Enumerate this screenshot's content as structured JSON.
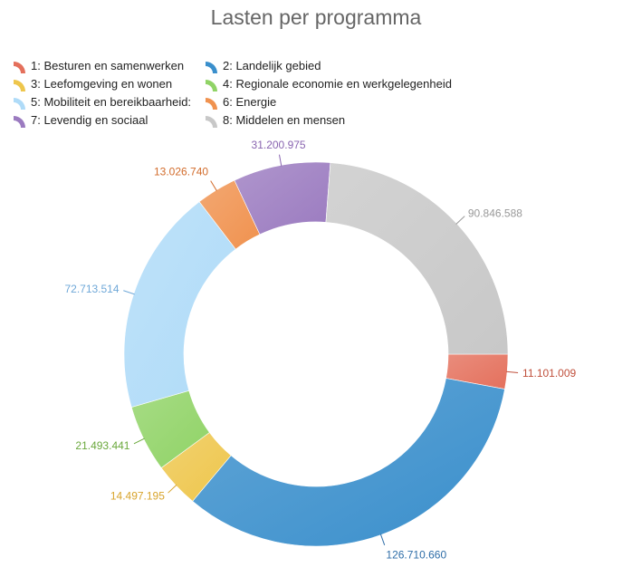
{
  "chart_data": {
    "type": "pie",
    "variant": "donut",
    "title": "Lasten per programma",
    "legend_position": "top-left",
    "start_angle_deg": 90,
    "direction": "clockwise",
    "categories": [
      "1: Besturen en samenwerken",
      "2: Landelijk gebied",
      "3: Leefomgeving en wonen",
      "4: Regionale economie en werkgelegenheid",
      "5: Mobiliteit en bereikbaarheid:",
      "6: Energie",
      "7: Levendig en sociaal",
      "8: Middelen en mensen"
    ],
    "values": [
      11101009,
      126710660,
      14497195,
      21493441,
      72713514,
      13026740,
      31200975,
      90846588
    ],
    "value_labels": [
      "11.101.009",
      "126.710.660",
      "14.497.195",
      "21.493.441",
      "72.713.514",
      "13.026.740",
      "31.200.975",
      "90.846.588"
    ],
    "colors": [
      "#e4705c",
      "#3a8fcc",
      "#eec64c",
      "#90d366",
      "#afdbf8",
      "#f0924f",
      "#9b7bc0",
      "#c8c8c8"
    ],
    "label_colors": [
      "#c0503c",
      "#2f6ea8",
      "#d8a42c",
      "#6aa83c",
      "#6fa8d8",
      "#d26c2c",
      "#8964b0",
      "#999999"
    ]
  }
}
